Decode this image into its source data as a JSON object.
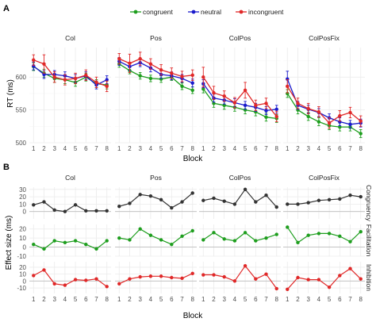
{
  "figure": {
    "tag_a": "A",
    "tag_b": "B",
    "legend": [
      {
        "label": "congruent",
        "color": "#1e9e1e"
      },
      {
        "label": "neutral",
        "color": "#1a1acc"
      },
      {
        "label": "incongruent",
        "color": "#e02828"
      }
    ]
  },
  "chart_data": [
    {
      "type": "line",
      "panel": "A",
      "xlabel": "Block",
      "ylabel": "RT (ms)",
      "ylim": [
        500,
        645
      ],
      "yticks": [
        500,
        550,
        600
      ],
      "x": [
        1,
        2,
        3,
        4,
        5,
        6,
        7,
        8
      ],
      "facets": [
        {
          "name": "Col",
          "series": [
            {
              "name": "congruent",
              "values": [
                616,
                606,
                598,
                596,
                592,
                600,
                590,
                588
              ],
              "err": [
                6,
                6,
                6,
                6,
                6,
                6,
                6,
                6
              ]
            },
            {
              "name": "neutral",
              "values": [
                617,
                604,
                604,
                602,
                598,
                602,
                588,
                596
              ],
              "err": [
                6,
                6,
                6,
                6,
                6,
                6,
                6,
                6
              ]
            },
            {
              "name": "incongruent",
              "values": [
                626,
                620,
                600,
                596,
                598,
                603,
                592,
                586
              ],
              "err": [
                8,
                14,
                8,
                8,
                8,
                8,
                8,
                8
              ]
            }
          ]
        },
        {
          "name": "Pos",
          "series": [
            {
              "name": "congruent",
              "values": [
                620,
                610,
                602,
                598,
                597,
                600,
                586,
                580
              ],
              "err": [
                5,
                5,
                5,
                5,
                5,
                5,
                5,
                5
              ]
            },
            {
              "name": "neutral",
              "values": [
                624,
                616,
                622,
                614,
                604,
                602,
                598,
                591
              ],
              "err": [
                6,
                6,
                6,
                6,
                6,
                6,
                6,
                6
              ]
            },
            {
              "name": "incongruent",
              "values": [
                628,
                621,
                628,
                620,
                611,
                606,
                601,
                603
              ],
              "err": [
                8,
                14,
                10,
                8,
                8,
                8,
                8,
                8
              ]
            }
          ]
        },
        {
          "name": "ColPos",
          "series": [
            {
              "name": "congruent",
              "values": [
                582,
                560,
                557,
                554,
                550,
                547,
                539,
                537
              ],
              "err": [
                6,
                6,
                6,
                6,
                6,
                6,
                6,
                6
              ]
            },
            {
              "name": "neutral",
              "values": [
                590,
                568,
                565,
                561,
                557,
                554,
                549,
                551
              ],
              "err": [
                6,
                6,
                6,
                6,
                6,
                6,
                6,
                6
              ]
            },
            {
              "name": "incongruent",
              "values": [
                600,
                576,
                571,
                561,
                580,
                557,
                560,
                540
              ],
              "err": [
                15,
                10,
                8,
                8,
                12,
                8,
                8,
                8
              ]
            }
          ]
        },
        {
          "name": "ColPosFix",
          "series": [
            {
              "name": "congruent",
              "values": [
                575,
                550,
                540,
                532,
                526,
                524,
                524,
                514
              ],
              "err": [
                6,
                6,
                6,
                6,
                6,
                6,
                6,
                6
              ]
            },
            {
              "name": "neutral",
              "values": [
                597,
                557,
                551,
                546,
                538,
                532,
                528,
                530
              ],
              "err": [
                12,
                6,
                6,
                6,
                6,
                6,
                6,
                6
              ]
            },
            {
              "name": "incongruent",
              "values": [
                586,
                560,
                552,
                547,
                530,
                541,
                546,
                533
              ],
              "err": [
                10,
                8,
                8,
                8,
                8,
                8,
                8,
                8
              ]
            }
          ]
        }
      ]
    },
    {
      "type": "line",
      "panel": "B",
      "xlabel": "Block",
      "ylabel": "Effect size (ms)",
      "x": [
        1,
        2,
        3,
        4,
        5,
        6,
        7,
        8
      ],
      "facets": [
        "Col",
        "Pos",
        "ColPos",
        "ColPosFix"
      ],
      "rows": [
        {
          "name": "Congruency",
          "color": "#333333",
          "ylim": [
            -10,
            33
          ],
          "yticks": [
            0,
            10,
            20,
            30
          ],
          "values": [
            [
              9,
              13,
              2,
              0,
              9,
              1,
              1,
              1
            ],
            [
              7,
              11,
              23,
              21,
              16,
              5,
              13,
              25
            ],
            [
              15,
              18,
              14,
              10,
              30,
              13,
              22,
              6
            ],
            [
              10,
              10,
              12,
              15,
              16,
              17,
              22,
              20
            ]
          ]
        },
        {
          "name": "Facilitation",
          "color": "#1e9e1e",
          "ylim": [
            -10,
            25
          ],
          "yticks": [
            -10,
            0,
            10,
            20
          ],
          "values": [
            [
              3,
              -2,
              7,
              5,
              7,
              3,
              -2,
              7
            ],
            [
              10,
              8,
              20,
              13,
              8,
              3,
              12,
              18
            ],
            [
              8,
              16,
              9,
              7,
              16,
              7,
              10,
              14
            ],
            [
              22,
              5,
              13,
              15,
              15,
              12,
              6,
              17
            ]
          ]
        },
        {
          "name": "Inhibition",
          "color": "#e02828",
          "ylim": [
            -18,
            28
          ],
          "yticks": [
            -20,
            -10,
            0,
            10,
            20
          ],
          "values": [
            [
              8,
              16,
              -4,
              -6,
              2,
              1,
              3,
              -8
            ],
            [
              -4,
              3,
              6,
              7,
              7,
              5,
              4,
              11
            ],
            [
              9,
              9,
              6,
              0,
              22,
              3,
              10,
              -11
            ],
            [
              -12,
              5,
              2,
              2,
              -9,
              8,
              18,
              3
            ]
          ]
        }
      ]
    }
  ]
}
